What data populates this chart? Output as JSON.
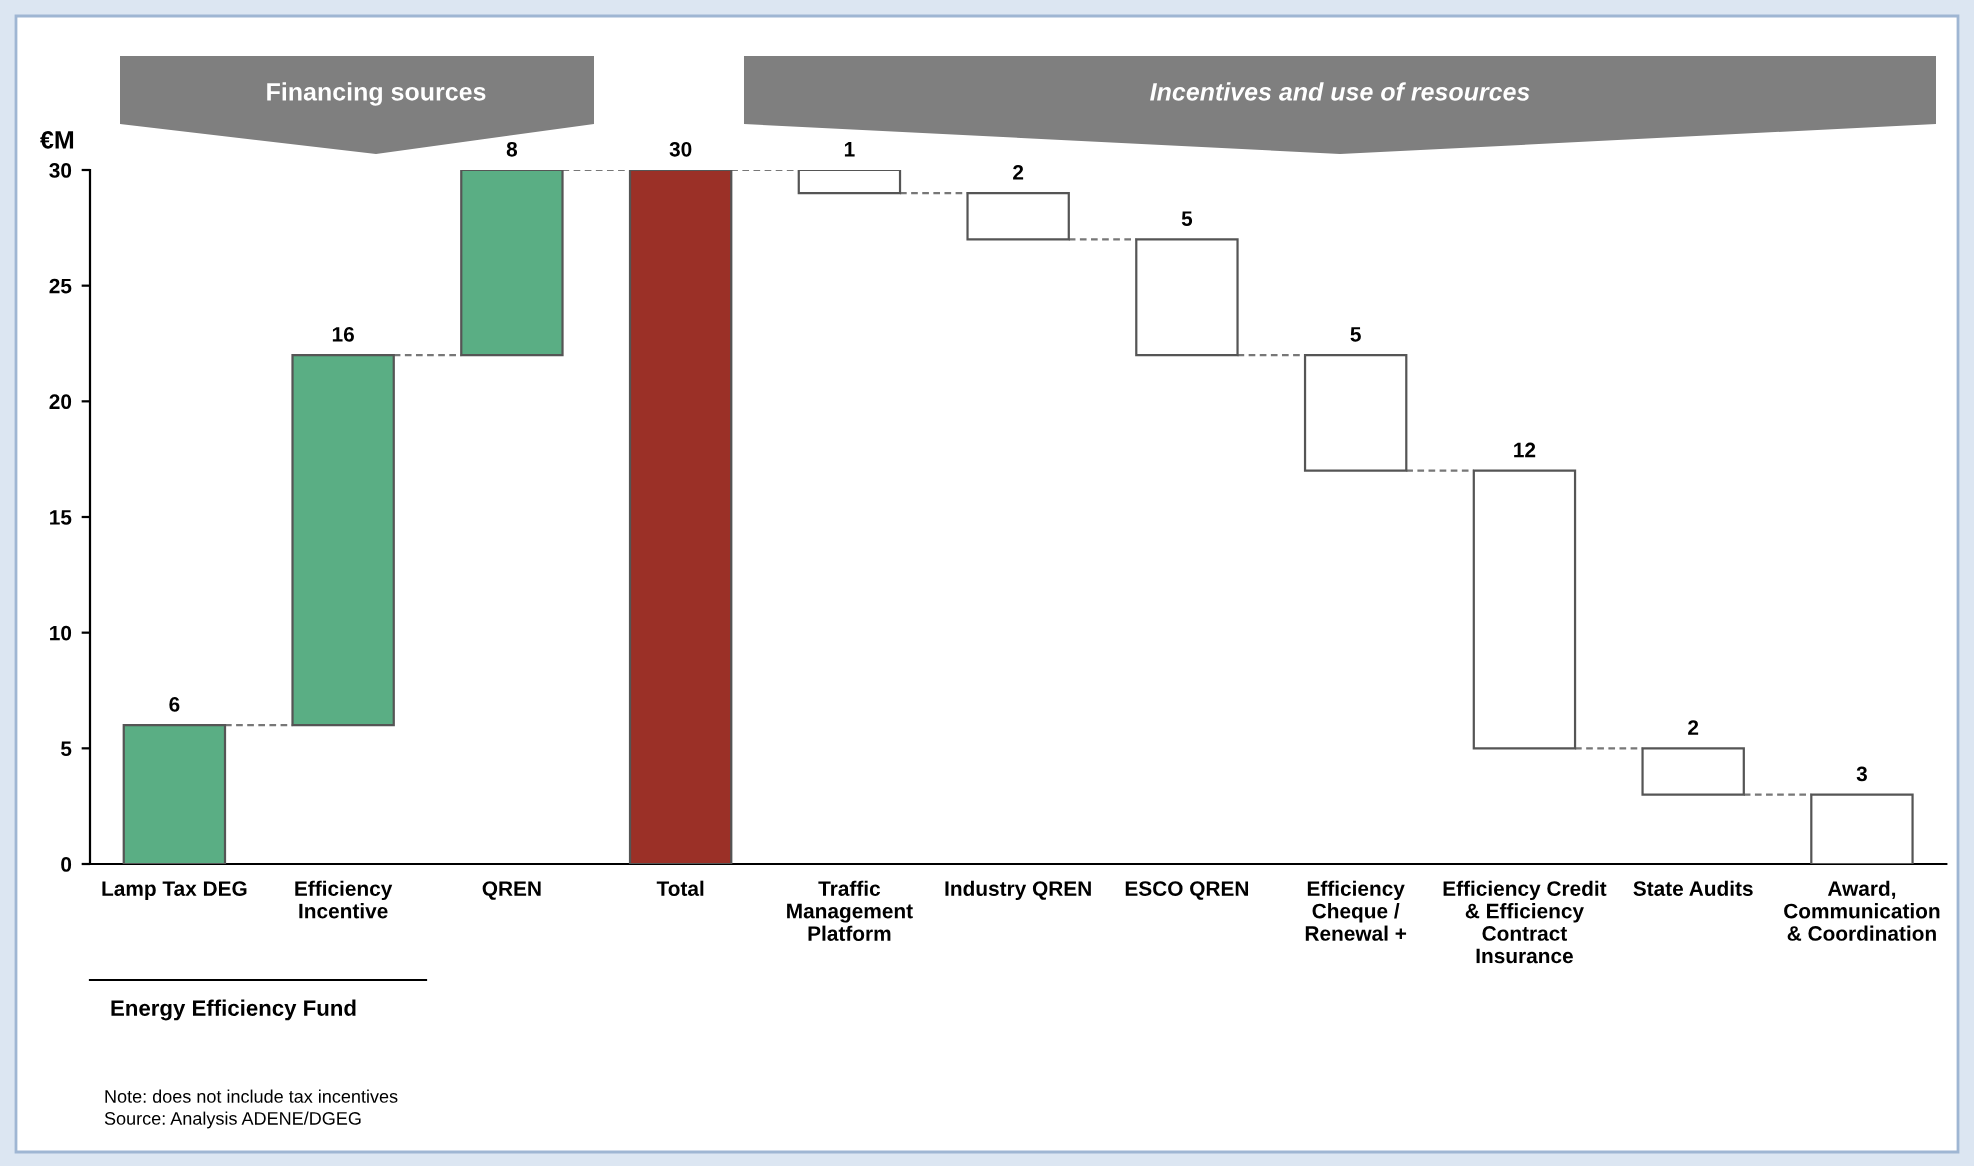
{
  "chart_data": {
    "type": "bar",
    "ylabel": "€M",
    "categories": [
      "Lamp Tax DEG",
      "Efficiency\nIncentive",
      "QREN",
      "Total",
      "Traffic\nManagement\nPlatform",
      "Industry QREN",
      "ESCO QREN",
      "Efficiency\nCheque /\nRenewal +",
      "Efficiency Credit\n& Efficiency\nContract\nInsurance",
      "State Audits",
      "Award,\nCommunication\n& Coordination"
    ],
    "values": [
      6,
      16,
      8,
      30,
      1,
      2,
      5,
      5,
      12,
      2,
      3
    ],
    "base": [
      0,
      6,
      22,
      0,
      29,
      27,
      22,
      17,
      5,
      3,
      0
    ],
    "colors": [
      "#5aae84",
      "#5aae84",
      "#5aae84",
      "#9b3027",
      "#ffffff",
      "#ffffff",
      "#ffffff",
      "#ffffff",
      "#ffffff",
      "#ffffff",
      "#ffffff"
    ],
    "ylim": [
      0,
      30
    ],
    "yticks": [
      0,
      5,
      10,
      15,
      20,
      25,
      30
    ],
    "data_labels": true,
    "grid": false,
    "annotations": [
      "Financing sources",
      "Incentives and use of resources",
      "Energy Efficiency Fund",
      "Note: does not include tax incentives",
      "Source: Analysis ADENE/DGEG"
    ]
  }
}
